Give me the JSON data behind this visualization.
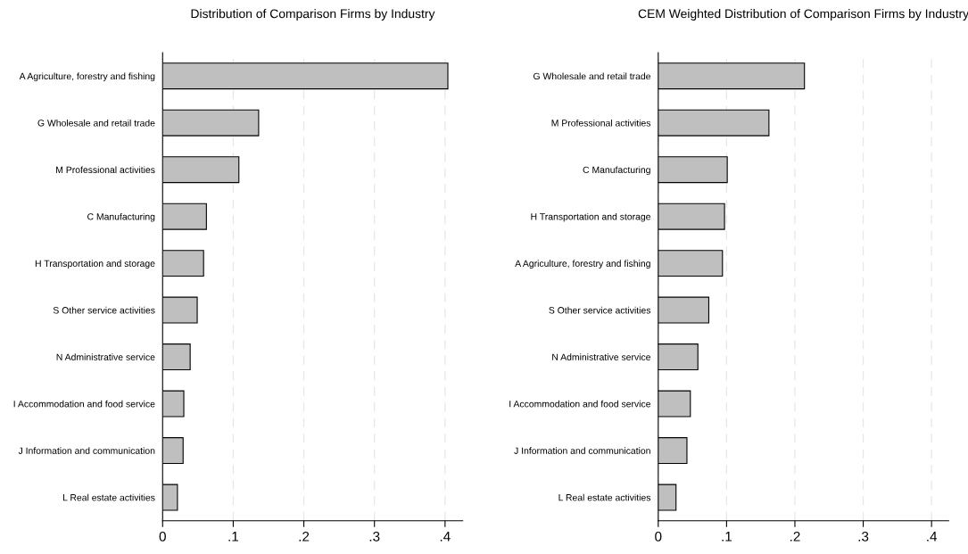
{
  "chart_data": [
    {
      "type": "bar",
      "orientation": "horizontal",
      "title": "Distribution of Comparison Firms by Industry",
      "categories": [
        "A Agriculture, forestry and fishing",
        "G Wholesale and retail trade",
        "M Professional activities",
        "C Manufacturing",
        "H Transportation and storage",
        "S Other service activities",
        "N Administrative service",
        "I Accommodation and food service",
        "J Information and communication",
        "L Real estate activities"
      ],
      "values": [
        0.404,
        0.136,
        0.108,
        0.062,
        0.058,
        0.049,
        0.039,
        0.03,
        0.029,
        0.021
      ],
      "color": "#bfbfbf",
      "xlim": [
        0,
        0.425
      ],
      "xticks": [
        {
          "value": 0,
          "label": "0"
        },
        {
          "value": 0.1,
          "label": ".1"
        },
        {
          "value": 0.2,
          "label": ".2"
        },
        {
          "value": 0.3,
          "label": ".3"
        },
        {
          "value": 0.4,
          "label": ".4"
        }
      ],
      "grid": "x"
    },
    {
      "type": "bar",
      "orientation": "horizontal",
      "title": "CEM Weighted Distribution of Comparison Firms by Industry",
      "categories": [
        "G Wholesale and retail trade",
        "M Professional activities",
        "C Manufacturing",
        "H Transportation and storage",
        "A Agriculture, forestry and fishing",
        "S Other service activities",
        "N Administrative service",
        "I Accommodation and food service",
        "J Information and communication",
        "L Real estate activities"
      ],
      "values": [
        0.214,
        0.162,
        0.101,
        0.097,
        0.094,
        0.074,
        0.058,
        0.047,
        0.042,
        0.026
      ],
      "color": "#bfbfbf",
      "xlim": [
        0,
        0.425
      ],
      "xticks": [
        {
          "value": 0,
          "label": "0"
        },
        {
          "value": 0.1,
          "label": ".1"
        },
        {
          "value": 0.2,
          "label": ".2"
        },
        {
          "value": 0.3,
          "label": ".3"
        },
        {
          "value": 0.4,
          "label": ".4"
        }
      ],
      "grid": "x"
    }
  ]
}
